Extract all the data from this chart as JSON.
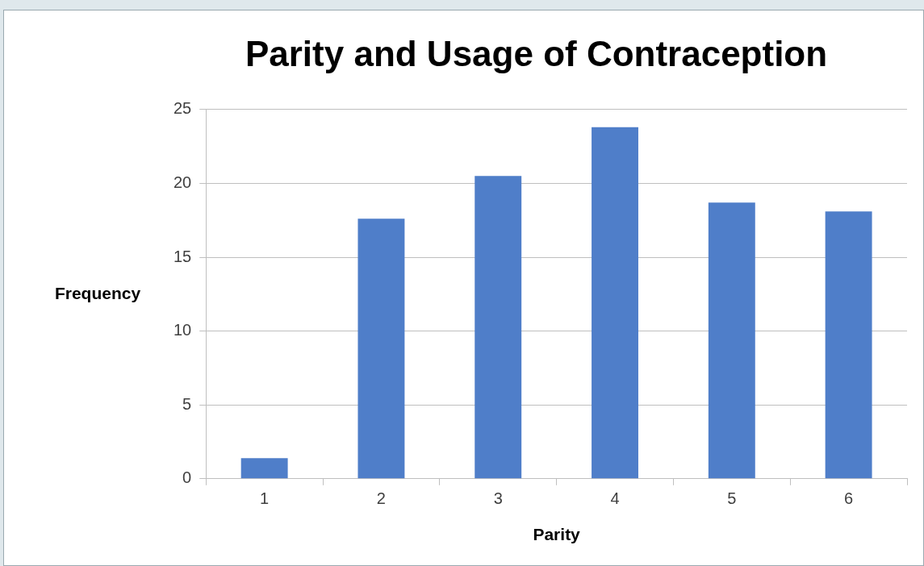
{
  "chart_data": {
    "type": "bar",
    "title": "Parity and Usage of Contraception",
    "xlabel": "Parity",
    "ylabel": "Frequency",
    "categories": [
      "1",
      "2",
      "3",
      "4",
      "5",
      "6"
    ],
    "values": [
      1.4,
      17.6,
      20.5,
      23.8,
      18.7,
      18.1
    ],
    "color": "#4f7ec9",
    "ylim": [
      0,
      25
    ],
    "yticks": [
      0,
      5,
      10,
      15,
      20,
      25
    ],
    "grid": "y",
    "legend": false
  }
}
